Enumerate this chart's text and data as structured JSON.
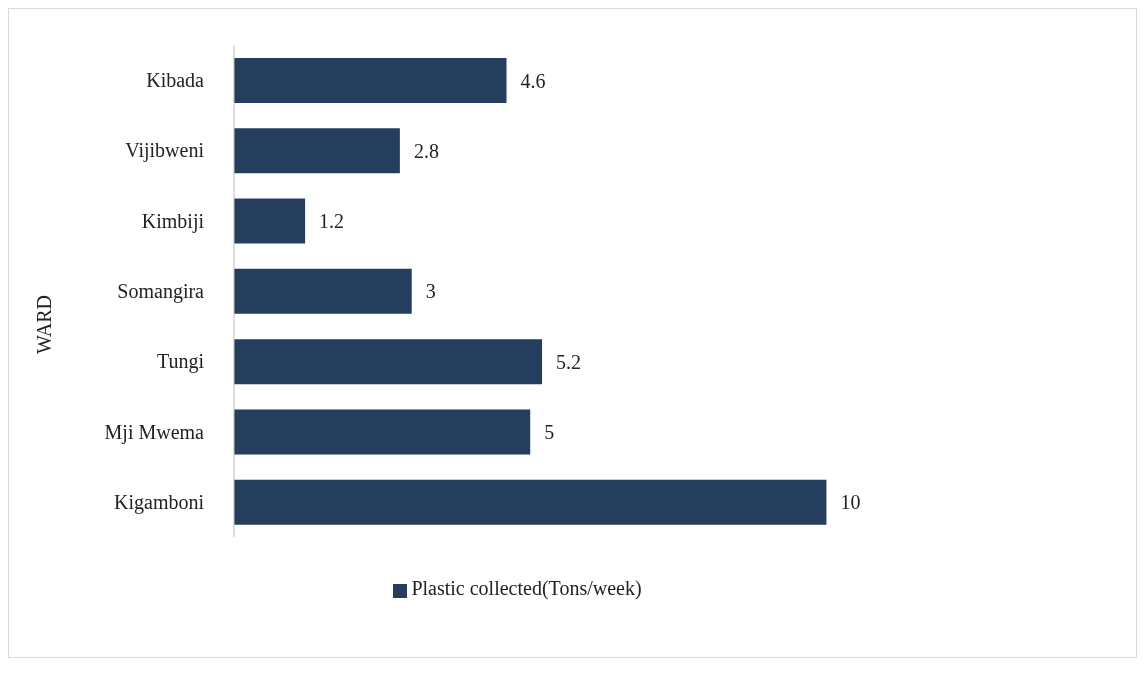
{
  "chart_data": {
    "type": "bar",
    "orientation": "horizontal",
    "ylabel": "WARD",
    "categories": [
      "Kibada",
      "Vijibweni",
      "Kimbiji",
      "Somangira",
      "Tungi",
      "Mji Mwema",
      "Kigamboni"
    ],
    "series": [
      {
        "name": "Plastic collected(Tons/week)",
        "color": "#253e5e",
        "values": [
          4.6,
          2.8,
          1.2,
          3,
          5.2,
          5,
          10
        ]
      }
    ],
    "data_labels": true,
    "legend": "bottom",
    "tick_labels": "y"
  }
}
